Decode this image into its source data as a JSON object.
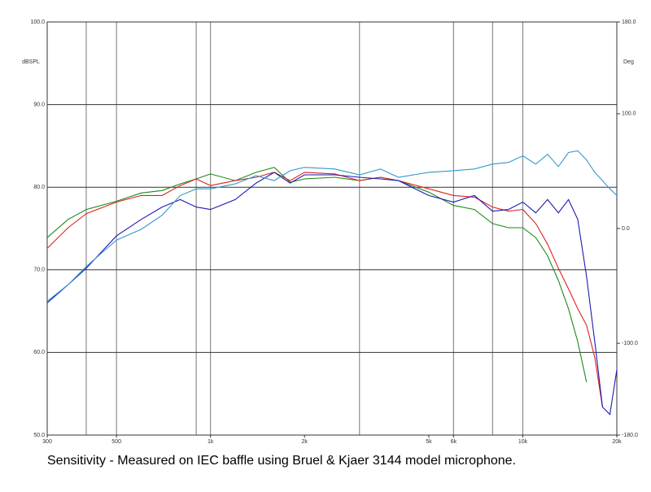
{
  "chart_data": {
    "type": "line",
    "xscale": "log",
    "yaxis_label": "dBSPL",
    "y2axis_label": "Deg",
    "caption": "Sensitivity -  Measured on IEC baffle using Bruel & Kjaer 3144 model microphone.",
    "xlim": [
      300,
      20000
    ],
    "xticks": [
      300,
      500,
      {
        "value": 1000,
        "label": "1k"
      },
      {
        "value": 2000,
        "label": "2k"
      },
      {
        "value": 5000,
        "label": "5k"
      },
      {
        "value": 6000,
        "label": "6k"
      },
      {
        "value": 10000,
        "label": "10k"
      },
      {
        "value": 20000,
        "label": "20k"
      }
    ],
    "xgrid": [
      400,
      500,
      900,
      1000,
      3000,
      6000,
      8000,
      10000
    ],
    "ylim": [
      50,
      100
    ],
    "yticks": [
      {
        "value": 100,
        "label": "100.0"
      },
      {
        "value": 90,
        "label": "90.0"
      },
      {
        "value": 80,
        "label": "80.0"
      },
      {
        "value": 70,
        "label": "70.0"
      },
      {
        "value": 60,
        "label": "60.0"
      },
      {
        "value": 50,
        "label": "50.0"
      }
    ],
    "y2lim": [
      -180,
      180
    ],
    "y2ticks": [
      {
        "value": 180,
        "label": "180.0"
      },
      {
        "value": 100,
        "label": "100.0"
      },
      {
        "value": 0,
        "label": "0.0"
      },
      {
        "value": -100,
        "label": "-100.0"
      },
      {
        "value": -180,
        "label": "-180.0"
      }
    ],
    "grid": true,
    "x": [
      300,
      350,
      400,
      500,
      600,
      700,
      800,
      900,
      1000,
      1200,
      1400,
      1600,
      1800,
      2000,
      2500,
      3000,
      3500,
      4000,
      5000,
      6000,
      7000,
      8000,
      9000,
      10000,
      11000,
      12000,
      13000,
      14000,
      15000,
      16000,
      17000,
      18000,
      19000,
      20000
    ],
    "series": [
      {
        "color": "#1a8a1a",
        "values": [
          73.9,
          76.1,
          77.3,
          78.3,
          79.3,
          79.6,
          80.4,
          81.0,
          81.6,
          80.8,
          81.8,
          82.4,
          80.6,
          81.0,
          81.2,
          80.8,
          81.2,
          80.8,
          79.4,
          77.8,
          77.3,
          75.6,
          75.1,
          75.1,
          73.9,
          71.7,
          68.7,
          65.3,
          61.3,
          56.4,
          null,
          null,
          null,
          null
        ]
      },
      {
        "color": "#e02020",
        "values": [
          72.6,
          75.1,
          76.8,
          78.2,
          79.0,
          79.0,
          80.2,
          81.0,
          80.2,
          80.8,
          81.2,
          81.8,
          80.8,
          81.8,
          81.6,
          80.8,
          81.2,
          80.8,
          79.8,
          79.0,
          78.8,
          77.6,
          77.1,
          77.3,
          75.6,
          73.1,
          70.2,
          67.7,
          65.3,
          63.3,
          59.4,
          53.4,
          null,
          null
        ]
      },
      {
        "color": "#1a1ab4",
        "values": [
          66.0,
          68.2,
          70.2,
          74.1,
          76.1,
          77.6,
          78.5,
          77.6,
          77.3,
          78.5,
          80.5,
          81.8,
          80.5,
          81.5,
          81.5,
          81.2,
          81.0,
          80.8,
          79.0,
          78.2,
          79.0,
          77.1,
          77.3,
          78.2,
          76.9,
          78.5,
          76.9,
          78.5,
          76.1,
          69.2,
          61.3,
          53.4,
          52.5,
          57.9
        ]
      },
      {
        "color": "#3399cc",
        "values": [
          66.2,
          68.2,
          70.4,
          73.6,
          74.9,
          76.6,
          79.0,
          79.8,
          79.8,
          80.4,
          81.4,
          80.8,
          82.0,
          82.4,
          82.2,
          81.5,
          82.2,
          81.2,
          81.8,
          82.0,
          82.2,
          82.8,
          83.0,
          83.8,
          82.8,
          84.0,
          82.5,
          84.2,
          84.4,
          83.3,
          81.8,
          80.8,
          79.8,
          79.0
        ]
      }
    ]
  }
}
